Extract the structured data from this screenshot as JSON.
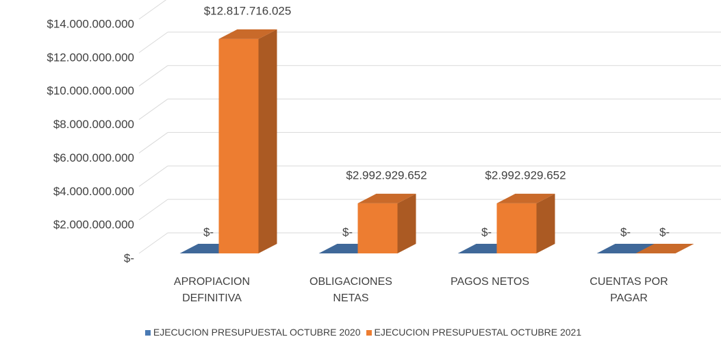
{
  "chart_data": {
    "type": "bar3d",
    "categories": [
      "APROPIACION\nDEFINITIVA",
      "OBLIGACIONES\nNETAS",
      "PAGOS NETOS",
      "CUENTAS POR\nPAGAR"
    ],
    "series": [
      {
        "name": "EJECUCION PRESUPUESTAL OCTUBRE 2020",
        "color": "#4a7ab4",
        "values": [
          0,
          0,
          0,
          0
        ],
        "value_labels": [
          "$-",
          "$-",
          "$-",
          "$-"
        ]
      },
      {
        "name": "EJECUCION PRESUPUESTAL OCTUBRE 2021",
        "color": "#ed7d31",
        "values": [
          12817716025,
          2992929652,
          2992929652,
          0
        ],
        "value_labels": [
          "$12.817.716.025",
          "$2.992.929.652",
          "$2.992.929.652",
          "$-"
        ]
      }
    ],
    "ylim": [
      0,
      14000000000
    ],
    "yticks": [
      {
        "value": 0,
        "label": "$-"
      },
      {
        "value": 2000000000,
        "label": "$2.000.000.000"
      },
      {
        "value": 4000000000,
        "label": "$4.000.000.000"
      },
      {
        "value": 6000000000,
        "label": "$6.000.000.000"
      },
      {
        "value": 8000000000,
        "label": "$8.000.000.000"
      },
      {
        "value": 10000000000,
        "label": "$10.000.000.000"
      },
      {
        "value": 12000000000,
        "label": "$12.000.000.000"
      },
      {
        "value": 14000000000,
        "label": "$14.000.000.000"
      }
    ],
    "grid": true,
    "legend": "bottom"
  }
}
